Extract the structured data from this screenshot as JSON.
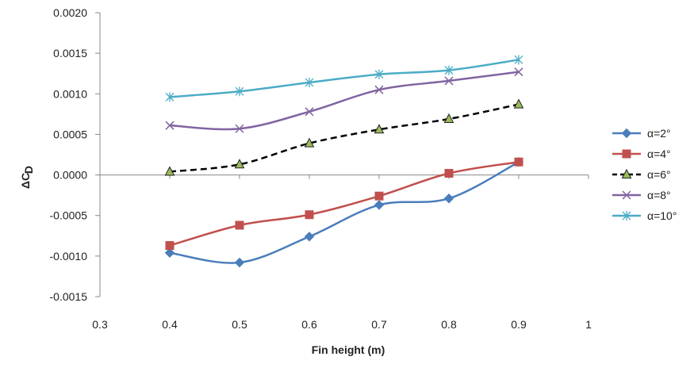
{
  "chart_data": {
    "type": "line",
    "title": "",
    "xlabel": "Fin height  (m)",
    "ylabel_main": "ΔC",
    "ylabel_sub": "D",
    "xlim": [
      0.3,
      1.0
    ],
    "ylim": [
      -0.0015,
      0.002
    ],
    "x_ticks": [
      0.3,
      0.4,
      0.5,
      0.6,
      0.7,
      0.8,
      0.9,
      1.0
    ],
    "x_tick_labels": [
      "0.3",
      "0.4",
      "0.5",
      "0.6",
      "0.7",
      "0.8",
      "0.9",
      "1"
    ],
    "y_ticks": [
      -0.0015,
      -0.001,
      -0.0005,
      0.0,
      0.0005,
      0.001,
      0.0015,
      0.002
    ],
    "y_tick_labels": [
      "-0.0015",
      "-0.0010",
      "-0.0005",
      "0.0000",
      "0.0005",
      "0.0010",
      "0.0015",
      "0.0020"
    ],
    "grid": false,
    "legend_position": "right",
    "x": [
      0.4,
      0.5,
      0.6,
      0.7,
      0.8,
      0.9
    ],
    "series": [
      {
        "name": "α=2°",
        "color": "#4a7ebb",
        "marker": "diamond",
        "dash": "solid",
        "values": [
          -0.00096,
          -0.00108,
          -0.00076,
          -0.00037,
          -0.00029,
          0.00016
        ]
      },
      {
        "name": "α=4°",
        "color": "#c0504d",
        "marker": "square",
        "dash": "solid",
        "values": [
          -0.00087,
          -0.00062,
          -0.00049,
          -0.00026,
          2e-05,
          0.00016
        ]
      },
      {
        "name": "α=6°",
        "color": "#000000",
        "marker": "triangle",
        "dash": "dashed",
        "marker_fill": "#9bbb59",
        "values": [
          4e-05,
          0.00013,
          0.00039,
          0.00056,
          0.00069,
          0.00087
        ]
      },
      {
        "name": "α=8°",
        "color": "#8064a2",
        "marker": "x",
        "dash": "solid",
        "values": [
          0.00061,
          0.00057,
          0.00078,
          0.00105,
          0.00116,
          0.00127
        ]
      },
      {
        "name": "α=10°",
        "color": "#4bacc6",
        "marker": "star",
        "dash": "solid",
        "values": [
          0.00096,
          0.00103,
          0.00114,
          0.00124,
          0.00129,
          0.00142
        ]
      }
    ]
  }
}
